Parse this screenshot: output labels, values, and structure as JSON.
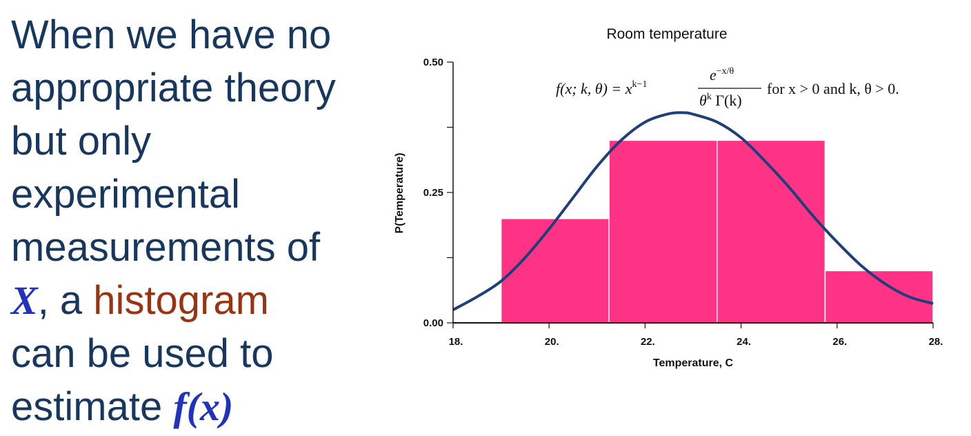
{
  "slide": {
    "line1": "When we have no",
    "line2": "appropriate theory",
    "line3": "but only",
    "line4": "experimental",
    "line5": "measurements of",
    "var_x": "X",
    "line6_rest": ", a ",
    "histogram_word": "histogram",
    "line7": "can be used to",
    "line8_prefix": "estimate ",
    "fx": "f(x)",
    "colors": {
      "text": "#17375e",
      "var": "#2233bb",
      "highlight": "#993311"
    }
  },
  "formula": {
    "lhs": "f(x; k, θ) = x",
    "lhs_exp": "k−1",
    "numerator": "e",
    "numerator_exp": "−x/θ",
    "denominator": "θ",
    "denominator_exp": "k",
    "denominator_rest": " Γ(k)",
    "condition": "for x > 0 and k, θ > 0."
  },
  "chart_data": {
    "type": "bar",
    "title": "Room temperature",
    "xlabel": "Temperature, C",
    "ylabel": "P(Temperature)",
    "xlim": [
      18,
      28
    ],
    "ylim": [
      0,
      0.5
    ],
    "x_ticks": [
      18,
      20,
      22,
      24,
      26,
      28
    ],
    "x_tick_labels": [
      "18.",
      "20.",
      "22.",
      "24.",
      "26.",
      "28."
    ],
    "y_ticks": [
      0,
      0.125,
      0.25,
      0.375,
      0.5
    ],
    "y_tick_labels": [
      "0.00",
      "",
      "0.25",
      "",
      "0.50"
    ],
    "bars": [
      {
        "x0": 19.0,
        "x1": 21.25,
        "value": 0.2
      },
      {
        "x0": 21.25,
        "x1": 23.5,
        "value": 0.35
      },
      {
        "x0": 23.5,
        "x1": 25.75,
        "value": 0.35
      },
      {
        "x0": 25.75,
        "x1": 28.0,
        "value": 0.1
      }
    ],
    "curve": {
      "x": [
        18.0,
        18.5,
        19.0,
        19.5,
        20.0,
        20.5,
        21.0,
        21.5,
        22.0,
        22.5,
        22.8,
        23.0,
        23.5,
        24.0,
        24.5,
        25.0,
        25.5,
        26.0,
        26.5,
        27.0,
        27.5,
        28.0
      ],
      "y": [
        0.025,
        0.05,
        0.08,
        0.125,
        0.18,
        0.24,
        0.3,
        0.35,
        0.385,
        0.401,
        0.403,
        0.4,
        0.385,
        0.355,
        0.31,
        0.26,
        0.205,
        0.155,
        0.11,
        0.075,
        0.05,
        0.037
      ]
    },
    "grid": false,
    "colors": {
      "bar": "#ff3385",
      "bar_edge": "#ffffff",
      "curve": "#1f3f7a",
      "axis": "#111111"
    }
  }
}
